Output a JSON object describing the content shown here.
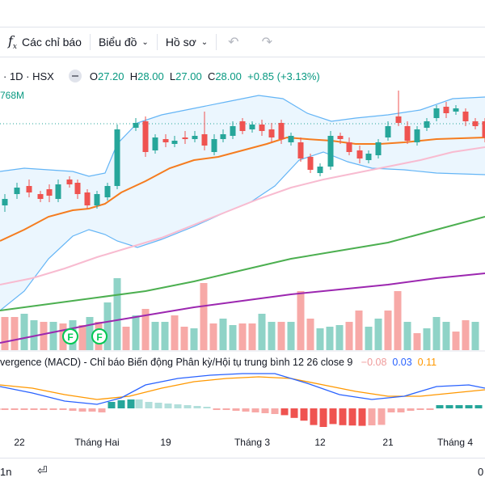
{
  "toolbar": {
    "indicators_label": "Các chỉ báo",
    "chart_label": "Biểu đồ",
    "layout_label": "Hồ sơ",
    "undo_icon": "↶",
    "redo_icon": "↷"
  },
  "legend": {
    "symbol": "· 1D · HSX",
    "open_label": "O",
    "open": "27.20",
    "high_label": "H",
    "high": "28.00",
    "low_label": "L",
    "low": "27.00",
    "close_label": "C",
    "close": "28.00",
    "change": "+0.85 (+3.13%)"
  },
  "volume_label": "768M",
  "macd": {
    "title": "vergence (MACD) - Chỉ báo Biến động Phân kỳ/Hội tụ trung bình 12 26 close 9",
    "hist": "−0.08",
    "macd": "0.03",
    "signal": "0.11"
  },
  "bottom": {
    "left": "1n",
    "right": "0"
  },
  "chart_data": {
    "type": "candlestick",
    "x_ticks": [
      "22",
      "Tháng Hai",
      "19",
      "Tháng 3",
      "12",
      "21",
      "Tháng 4"
    ],
    "markers": [
      "F",
      "F"
    ],
    "colors": {
      "up": "#26a69a",
      "down": "#ef5350",
      "ema20": "#f57c1f",
      "ema50": "#f8bbd0",
      "ma100": "#4caf50",
      "ma200": "#9c27b0",
      "bollinger": "#64b5f6",
      "macd": "#2962ff",
      "signal": "#ff9800"
    }
  }
}
